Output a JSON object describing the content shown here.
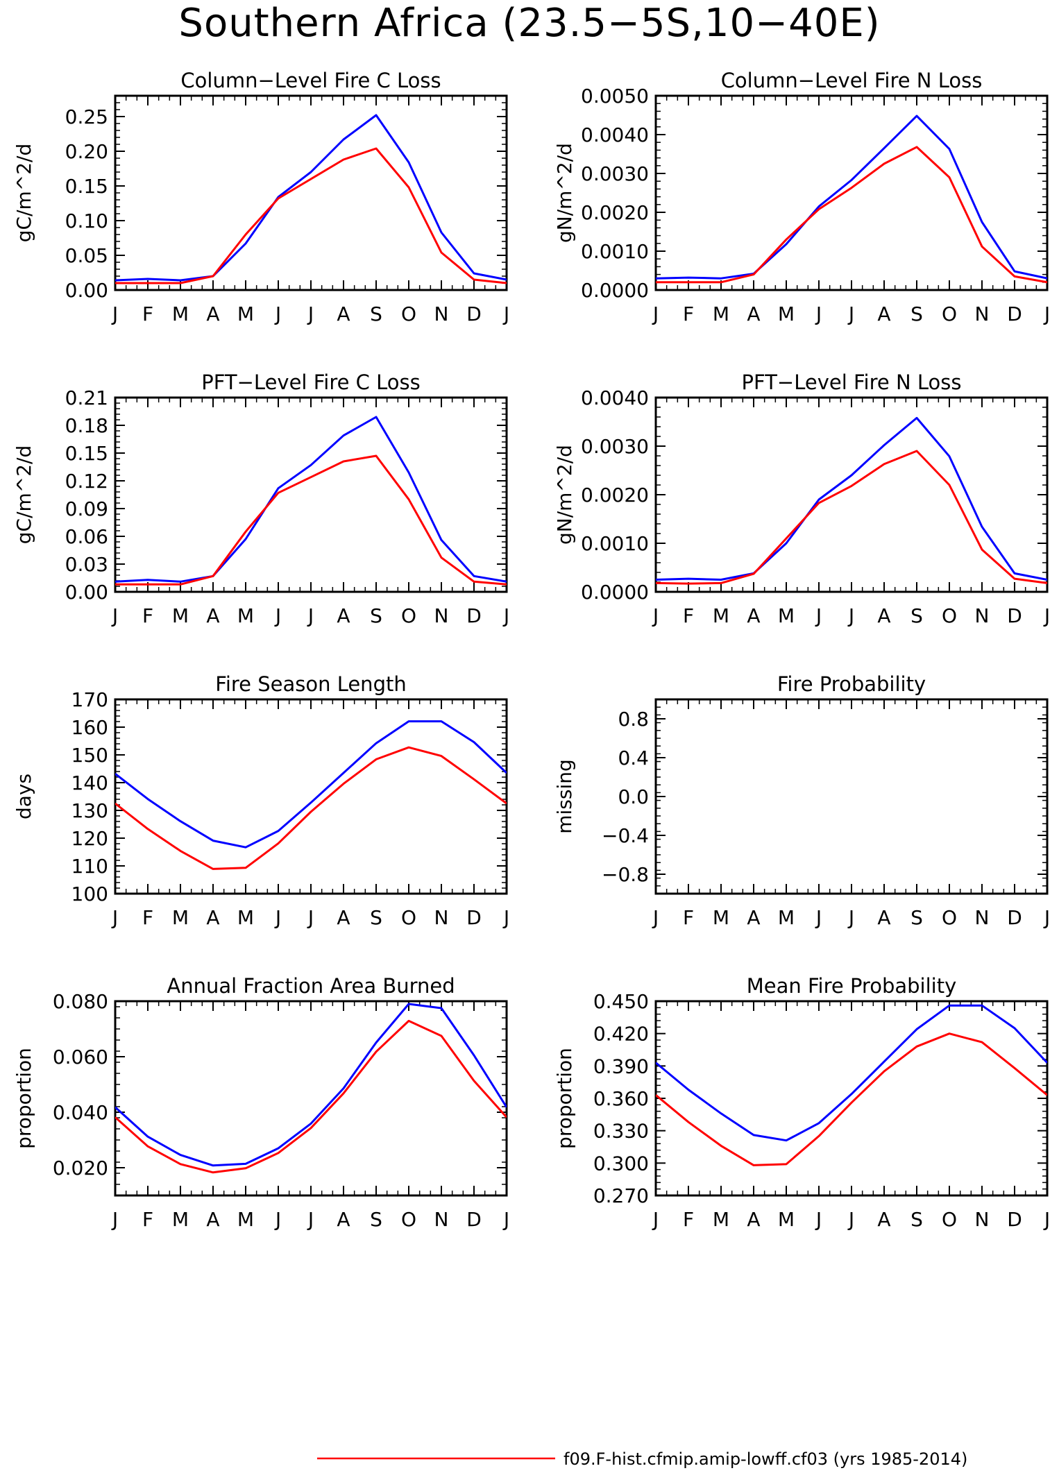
{
  "title": "Southern Africa (23.5-5S,10-40E)",
  "months": [
    "J",
    "F",
    "M",
    "A",
    "M",
    "J",
    "J",
    "A",
    "S",
    "O",
    "N",
    "D",
    "J"
  ],
  "colors": {
    "blue": "#0000ff",
    "red": "#ff0000",
    "axis": "#000000"
  },
  "legend": {
    "label": "f09.F-hist.cfmip.amip-lowff.cf03 (yrs 1985-2014)",
    "color": "#ff0000"
  },
  "chart_data": [
    {
      "type": "line",
      "title": "Column-Level Fire C Loss",
      "ylabel": "gC/m^2/d",
      "ylim": [
        0,
        0.28
      ],
      "yticks": [
        0,
        0.05,
        0.1,
        0.15,
        0.2,
        0.25
      ],
      "ytick_labels": [
        "0.00",
        "0.05",
        "0.10",
        "0.15",
        "0.20",
        "0.25"
      ],
      "x": [
        "J",
        "F",
        "M",
        "A",
        "M",
        "J",
        "J",
        "A",
        "S",
        "O",
        "N",
        "D",
        "J"
      ],
      "series": [
        {
          "color": "#0000ff",
          "values": [
            0.014,
            0.016,
            0.014,
            0.02,
            0.067,
            0.134,
            0.17,
            0.217,
            0.252,
            0.184,
            0.083,
            0.024,
            0.015
          ]
        },
        {
          "color": "#ff0000",
          "values": [
            0.01,
            0.01,
            0.01,
            0.02,
            0.08,
            0.132,
            0.16,
            0.188,
            0.204,
            0.148,
            0.054,
            0.015,
            0.01
          ]
        }
      ]
    },
    {
      "type": "line",
      "title": "Column-Level Fire N Loss",
      "ylabel": "gN/m^2/d",
      "ylim": [
        0,
        0.005
      ],
      "yticks": [
        0,
        0.001,
        0.002,
        0.003,
        0.004,
        0.005
      ],
      "ytick_labels": [
        "0.0000",
        "0.0010",
        "0.0020",
        "0.0030",
        "0.0040",
        "0.0050"
      ],
      "x": [
        "J",
        "F",
        "M",
        "A",
        "M",
        "J",
        "J",
        "A",
        "S",
        "O",
        "N",
        "D",
        "J"
      ],
      "series": [
        {
          "color": "#0000ff",
          "values": [
            0.0003,
            0.00032,
            0.0003,
            0.00042,
            0.00118,
            0.00215,
            0.00283,
            0.00365,
            0.00448,
            0.00363,
            0.00175,
            0.00048,
            0.0003
          ]
        },
        {
          "color": "#ff0000",
          "values": [
            0.0002,
            0.0002,
            0.0002,
            0.0004,
            0.0013,
            0.00208,
            0.00263,
            0.00325,
            0.00368,
            0.0029,
            0.00112,
            0.00035,
            0.0002
          ]
        }
      ]
    },
    {
      "type": "line",
      "title": "PFT-Level Fire C Loss",
      "ylabel": "gC/m^2/d",
      "ylim": [
        0,
        0.21
      ],
      "yticks": [
        0,
        0.03,
        0.06,
        0.09,
        0.12,
        0.15,
        0.18,
        0.21
      ],
      "ytick_labels": [
        "0.00",
        "0.03",
        "0.06",
        "0.09",
        "0.12",
        "0.15",
        "0.18",
        "0.21"
      ],
      "x": [
        "J",
        "F",
        "M",
        "A",
        "M",
        "J",
        "J",
        "A",
        "S",
        "O",
        "N",
        "D",
        "J"
      ],
      "series": [
        {
          "color": "#0000ff",
          "values": [
            0.011,
            0.013,
            0.011,
            0.017,
            0.057,
            0.112,
            0.137,
            0.169,
            0.189,
            0.129,
            0.056,
            0.017,
            0.011
          ]
        },
        {
          "color": "#ff0000",
          "values": [
            0.008,
            0.008,
            0.008,
            0.017,
            0.065,
            0.107,
            0.124,
            0.141,
            0.147,
            0.1,
            0.037,
            0.011,
            0.008
          ]
        }
      ]
    },
    {
      "type": "line",
      "title": "PFT-Level Fire N Loss",
      "ylabel": "gN/m^2/d",
      "ylim": [
        0,
        0.004
      ],
      "yticks": [
        0,
        0.001,
        0.002,
        0.003,
        0.004
      ],
      "ytick_labels": [
        "0.0000",
        "0.0010",
        "0.0020",
        "0.0030",
        "0.0040"
      ],
      "x": [
        "J",
        "F",
        "M",
        "A",
        "M",
        "J",
        "J",
        "A",
        "S",
        "O",
        "N",
        "D",
        "J"
      ],
      "series": [
        {
          "color": "#0000ff",
          "values": [
            0.00025,
            0.00027,
            0.00025,
            0.00038,
            0.001,
            0.0019,
            0.0024,
            0.00302,
            0.00358,
            0.00279,
            0.00134,
            0.00038,
            0.00025
          ]
        },
        {
          "color": "#ff0000",
          "values": [
            0.00018,
            0.00017,
            0.00018,
            0.00037,
            0.0011,
            0.00183,
            0.00218,
            0.00263,
            0.0029,
            0.0022,
            0.00087,
            0.00027,
            0.00018
          ]
        }
      ]
    },
    {
      "type": "line",
      "title": "Fire Season Length",
      "ylabel": "days",
      "ylim": [
        100,
        170
      ],
      "yticks": [
        100,
        110,
        120,
        130,
        140,
        150,
        160,
        170
      ],
      "ytick_labels": [
        "100",
        "110",
        "120",
        "130",
        "140",
        "150",
        "160",
        "170"
      ],
      "x": [
        "J",
        "F",
        "M",
        "A",
        "M",
        "J",
        "J",
        "A",
        "S",
        "O",
        "N",
        "D",
        "J"
      ],
      "series": [
        {
          "color": "#0000ff",
          "values": [
            143.2,
            134.1,
            126.1,
            119.1,
            116.7,
            122.6,
            132.8,
            143.5,
            154.2,
            162.1,
            162.1,
            154.6,
            143.5
          ]
        },
        {
          "color": "#ff0000",
          "values": [
            132.5,
            123.3,
            115.4,
            108.9,
            109.3,
            118.1,
            129.5,
            139.6,
            148.4,
            152.7,
            149.6,
            141.2,
            132.5
          ]
        }
      ]
    },
    {
      "type": "line",
      "title": "Fire Probability",
      "ylabel": "missing",
      "ylim": [
        -1,
        1
      ],
      "yticks": [
        -0.8,
        -0.4,
        0,
        0.4,
        0.8
      ],
      "ytick_labels": [
        "-0.8",
        "-0.4",
        "0.0",
        "0.4",
        "0.8"
      ],
      "x": [
        "J",
        "F",
        "M",
        "A",
        "M",
        "J",
        "J",
        "A",
        "S",
        "O",
        "N",
        "D",
        "J"
      ],
      "series": []
    },
    {
      "type": "line",
      "title": "Annual Fraction Area Burned",
      "ylabel": "proportion",
      "ylim": [
        0.01,
        0.08
      ],
      "yticks": [
        0.02,
        0.04,
        0.06,
        0.08
      ],
      "ytick_labels": [
        "0.020",
        "0.040",
        "0.060",
        "0.080"
      ],
      "x": [
        "J",
        "F",
        "M",
        "A",
        "M",
        "J",
        "J",
        "A",
        "S",
        "O",
        "N",
        "D",
        "J"
      ],
      "series": [
        {
          "color": "#0000ff",
          "values": [
            0.0418,
            0.0312,
            0.0246,
            0.0208,
            0.0214,
            0.027,
            0.0359,
            0.0486,
            0.0651,
            0.079,
            0.0775,
            0.0605,
            0.0418
          ]
        },
        {
          "color": "#ff0000",
          "values": [
            0.0382,
            0.0277,
            0.0213,
            0.0183,
            0.0198,
            0.0253,
            0.0343,
            0.0468,
            0.0618,
            0.0729,
            0.0675,
            0.0513,
            0.0382
          ]
        }
      ]
    },
    {
      "type": "line",
      "title": "Mean Fire Probability",
      "ylabel": "proportion",
      "ylim": [
        0.27,
        0.45
      ],
      "yticks": [
        0.27,
        0.3,
        0.33,
        0.36,
        0.39,
        0.42,
        0.45
      ],
      "ytick_labels": [
        "0.270",
        "0.300",
        "0.330",
        "0.360",
        "0.390",
        "0.420",
        "0.450"
      ],
      "x": [
        "J",
        "F",
        "M",
        "A",
        "M",
        "J",
        "J",
        "A",
        "S",
        "O",
        "N",
        "D",
        "J"
      ],
      "series": [
        {
          "color": "#0000ff",
          "values": [
            0.393,
            0.368,
            0.346,
            0.326,
            0.321,
            0.337,
            0.364,
            0.394,
            0.424,
            0.446,
            0.446,
            0.425,
            0.393
          ]
        },
        {
          "color": "#ff0000",
          "values": [
            0.363,
            0.338,
            0.316,
            0.298,
            0.299,
            0.325,
            0.356,
            0.385,
            0.408,
            0.42,
            0.412,
            0.388,
            0.363
          ]
        }
      ]
    }
  ]
}
